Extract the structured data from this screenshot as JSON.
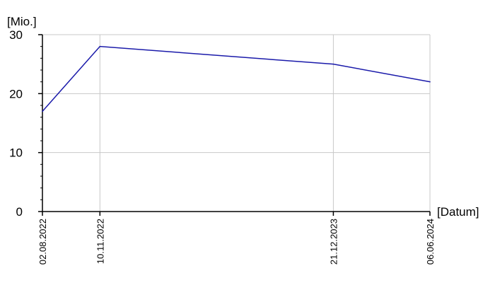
{
  "chart_data": {
    "type": "line",
    "ylabel": "[Mio.]",
    "xlabel": "[Datum]",
    "ylim": [
      0,
      30
    ],
    "yticks": [
      0,
      10,
      20,
      30
    ],
    "xticks": [
      "02.08.2022",
      "10.11.2022",
      "21.12.2023",
      "06.06.2024"
    ],
    "grid": true,
    "series": [
      {
        "color": "#1a1aaa",
        "points": [
          {
            "x": "02.08.2022",
            "y": 17
          },
          {
            "x": "10.11.2022",
            "y": 28
          },
          {
            "x": "21.12.2023",
            "y": 25
          },
          {
            "x": "06.06.2024",
            "y": 22
          }
        ]
      }
    ]
  }
}
